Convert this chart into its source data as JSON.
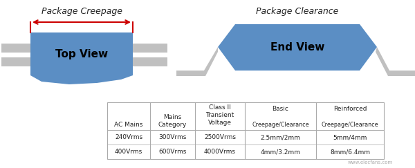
{
  "bg_color": "#ffffff",
  "title_left": "Package Creepage",
  "title_right": "Package Clearance",
  "label_left": "Top View",
  "label_right": "End View",
  "pkg_blue": "#5b8ec4",
  "gray_lead": "#c0c0c0",
  "red_arrow": "#cc0000",
  "col1_header": "AC Mains",
  "col2_header": "Mains\nCategory",
  "col3_header": "Class II\nTransient\nVoltage",
  "col4_header": "Basic",
  "col4_sub": "Creepage/Clearance",
  "col5_header": "Reinforced",
  "col5_sub": "Creepage/Clearance",
  "row1": [
    "240Vrms",
    "300Vrms",
    "2500Vrms",
    "2.5mm/2mm",
    "5mm/4mm"
  ],
  "row2": [
    "400Vrms",
    "600Vrms",
    "4000Vrms",
    "4mm/3.2mm",
    "8mm/6.4mm"
  ],
  "watermark": "www.elecfans.com"
}
